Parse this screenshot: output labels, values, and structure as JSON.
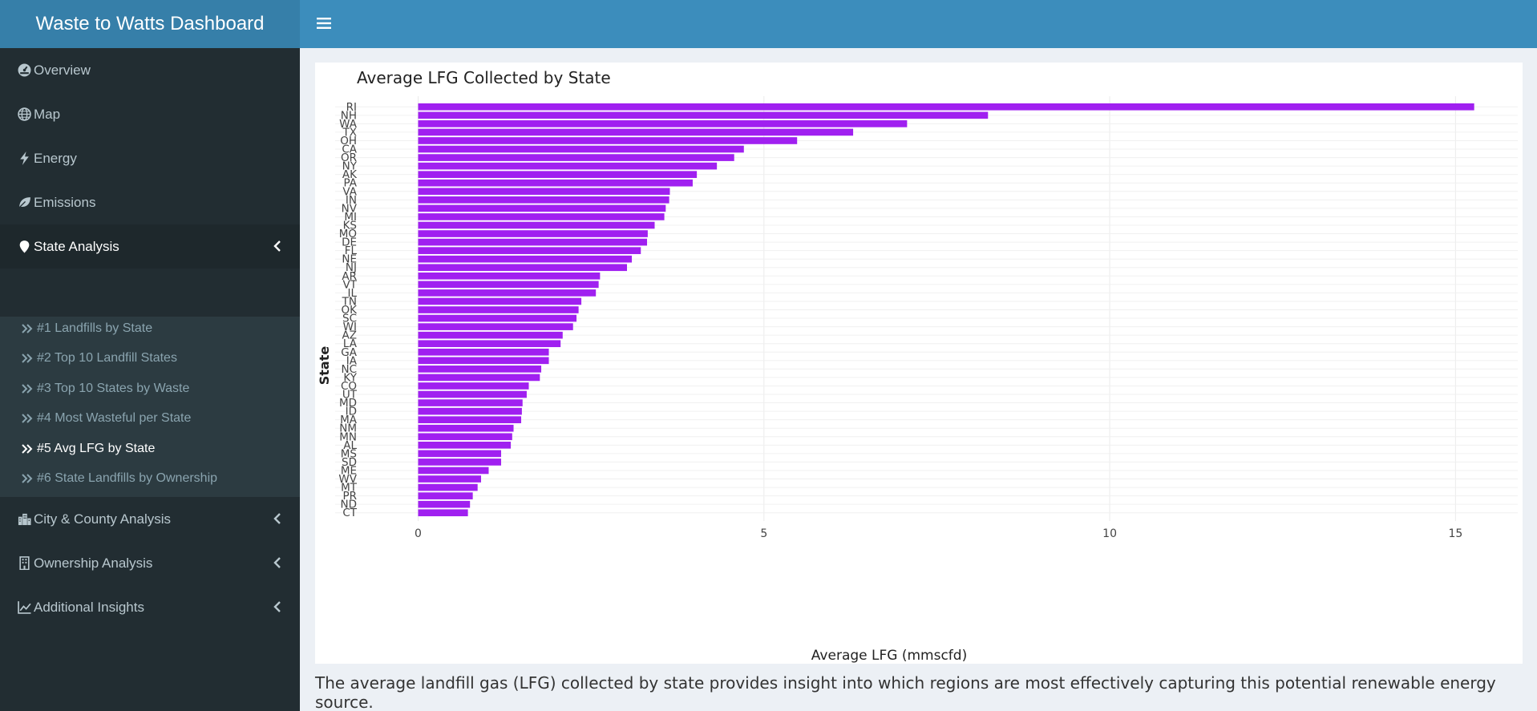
{
  "header": {
    "app_title": "Waste to Watts Dashboard",
    "toggle_icon": "hamburger-icon"
  },
  "sidebar": {
    "items": [
      {
        "label": "Overview",
        "icon": "dashboard-gauge-icon"
      },
      {
        "label": "Map",
        "icon": "globe-icon"
      },
      {
        "label": "Energy",
        "icon": "bolt-icon"
      },
      {
        "label": "Emissions",
        "icon": "leaf-icon"
      },
      {
        "label": "State Analysis",
        "icon": "map-marker-icon",
        "expanded": true
      },
      {
        "label": "City & County Analysis",
        "icon": "city-icon"
      },
      {
        "label": "Ownership Analysis",
        "icon": "building-icon"
      },
      {
        "label": "Additional Insights",
        "icon": "line-chart-icon"
      }
    ],
    "state_submenu": [
      {
        "label": "#1 Landfills by State"
      },
      {
        "label": "#2 Top 10 Landfill States"
      },
      {
        "label": "#3 Top 10 States by Waste"
      },
      {
        "label": "#4 Most Wasteful per State"
      },
      {
        "label": "#5 Avg LFG by State",
        "active": true
      },
      {
        "label": "#6 State Landfills by Ownership"
      }
    ]
  },
  "main": {
    "caption": "The average landfill gas (LFG) collected by state provides insight into which regions are most effectively capturing this potential renewable energy source."
  },
  "colors": {
    "bar": "#a020f0",
    "header": "#3c8dbc",
    "logo": "#367fa9",
    "sidebar": "#222d32"
  },
  "chart_data": {
    "type": "bar",
    "orientation": "horizontal",
    "title": "Average LFG Collected by State",
    "xlabel": "Average LFG (mmscfd)",
    "ylabel": "State",
    "xlim": [
      -1.2,
      15.9
    ],
    "xticks": [
      0,
      5,
      10,
      15
    ],
    "grid": true,
    "categories": [
      "RI",
      "NH",
      "WA",
      "TX",
      "OH",
      "CA",
      "OR",
      "NY",
      "AK",
      "PA",
      "VA",
      "IN",
      "NV",
      "MI",
      "KS",
      "MO",
      "DE",
      "FL",
      "NE",
      "NJ",
      "AR",
      "VT",
      "IL",
      "TN",
      "OK",
      "SC",
      "WI",
      "AZ",
      "LA",
      "GA",
      "IA",
      "NC",
      "KY",
      "CO",
      "UT",
      "MD",
      "ID",
      "MA",
      "NM",
      "MN",
      "AL",
      "MS",
      "SD",
      "ME",
      "WV",
      "MT",
      "PR",
      "ND",
      "CT"
    ],
    "values": [
      15.27,
      8.24,
      7.07,
      6.29,
      5.48,
      4.71,
      4.57,
      4.32,
      4.03,
      3.97,
      3.64,
      3.63,
      3.58,
      3.56,
      3.42,
      3.32,
      3.31,
      3.22,
      3.09,
      3.02,
      2.63,
      2.61,
      2.57,
      2.36,
      2.32,
      2.29,
      2.24,
      2.09,
      2.06,
      1.89,
      1.89,
      1.78,
      1.76,
      1.6,
      1.57,
      1.51,
      1.5,
      1.49,
      1.38,
      1.36,
      1.34,
      1.2,
      1.2,
      1.02,
      0.91,
      0.86,
      0.79,
      0.75,
      0.72
    ]
  }
}
